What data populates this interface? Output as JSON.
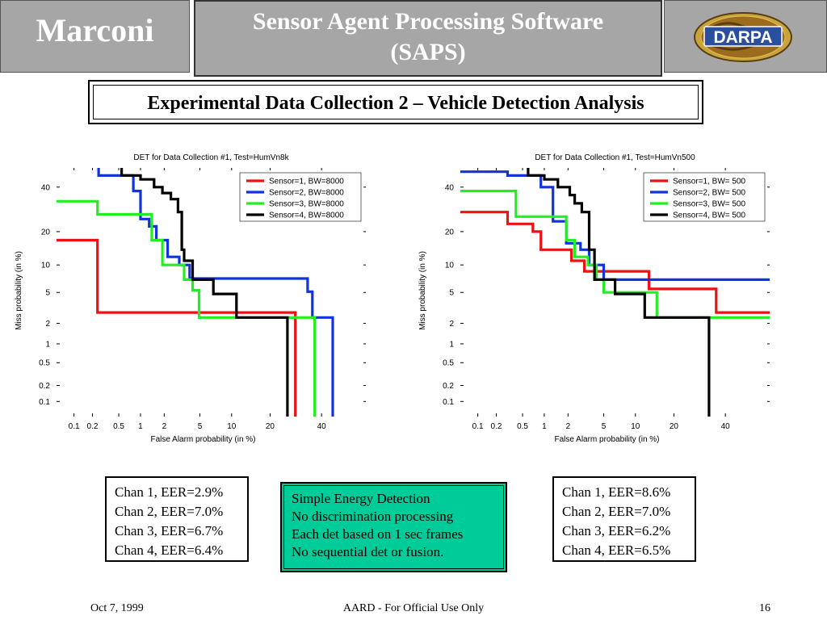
{
  "header": {
    "brand": "Marconi",
    "title_line1": "Sensor Agent Processing Software",
    "title_line2": "(SAPS)",
    "partner_logo": "DARPA",
    "bg_color": "#a6a6a6"
  },
  "subtitle": "Experimental Data Collection 2 – Vehicle Detection Analysis",
  "axis_ticks": [
    "0.1",
    "0.2",
    "0.5",
    "1",
    "2",
    "5",
    "10",
    "20",
    "40"
  ],
  "chart_data": [
    {
      "type": "line",
      "title": "DET for Data Collection #1, Test=HumVn8k",
      "xlabel": "False Alarm probability (in %)",
      "ylabel": "Miss probability (in %)",
      "xscale": "probit",
      "yscale": "probit",
      "xlim": [
        0.05,
        60
      ],
      "ylim": [
        0.05,
        50
      ],
      "grid": false,
      "legend_position": "top-right",
      "series": [
        {
          "name": "Sensor=1, BW=8000",
          "color": "#ee1111",
          "points": [
            [
              0.05,
              17
            ],
            [
              0.24,
              17
            ],
            [
              0.24,
              2.8
            ],
            [
              29,
              2.8
            ],
            [
              29,
              0.05
            ]
          ]
        },
        {
          "name": "Sensor=2, BW=8000",
          "color": "#1133dd",
          "points": [
            [
              0.25,
              50
            ],
            [
              0.25,
              46
            ],
            [
              0.8,
              46
            ],
            [
              0.8,
              38
            ],
            [
              1,
              38
            ],
            [
              1,
              25
            ],
            [
              1.3,
              25
            ],
            [
              1.3,
              22
            ],
            [
              1.6,
              22
            ],
            [
              1.6,
              17
            ],
            [
              2.2,
              17
            ],
            [
              2.2,
              12
            ],
            [
              3,
              12
            ],
            [
              3,
              10
            ],
            [
              3.9,
              10
            ],
            [
              3.9,
              7.2
            ],
            [
              34,
              7.2
            ],
            [
              34,
              5.1
            ],
            [
              36,
              5.1
            ],
            [
              36,
              2.4
            ],
            [
              45,
              2.4
            ],
            [
              45,
              0.05
            ]
          ]
        },
        {
          "name": "Sensor=3, BW=8000",
          "color": "#22ee22",
          "points": [
            [
              0.05,
              33
            ],
            [
              0.24,
              33
            ],
            [
              0.24,
              27
            ],
            [
              1.4,
              27
            ],
            [
              1.4,
              17
            ],
            [
              1.9,
              17
            ],
            [
              1.9,
              10
            ],
            [
              3.4,
              10
            ],
            [
              3.4,
              7
            ],
            [
              4.2,
              7
            ],
            [
              4.2,
              5.3
            ],
            [
              4.9,
              5.3
            ],
            [
              4.9,
              2.4
            ],
            [
              37,
              2.4
            ],
            [
              37,
              0.05
            ]
          ]
        },
        {
          "name": "Sensor=4, BW=8000",
          "color": "#000000",
          "points": [
            [
              0.55,
              50
            ],
            [
              0.55,
              46
            ],
            [
              1,
              46
            ],
            [
              1,
              44
            ],
            [
              1.5,
              44
            ],
            [
              1.5,
              40
            ],
            [
              1.9,
              40
            ],
            [
              1.9,
              37
            ],
            [
              2.4,
              37
            ],
            [
              2.4,
              34
            ],
            [
              2.9,
              34
            ],
            [
              2.9,
              28
            ],
            [
              3.2,
              28
            ],
            [
              3.2,
              14
            ],
            [
              3.4,
              14
            ],
            [
              3.4,
              11
            ],
            [
              4.2,
              11
            ],
            [
              4.2,
              7
            ],
            [
              6.8,
              7
            ],
            [
              6.8,
              4.8
            ],
            [
              11,
              4.8
            ],
            [
              11,
              2.4
            ],
            [
              26,
              2.4
            ],
            [
              26,
              0.05
            ]
          ]
        }
      ]
    },
    {
      "type": "line",
      "title": "DET for Data Collection #1, Test=HumVn500",
      "xlabel": "False Alarm probability (in %)",
      "ylabel": "Miss probability (in %)",
      "xscale": "probit",
      "yscale": "probit",
      "xlim": [
        0.05,
        60
      ],
      "ylim": [
        0.05,
        50
      ],
      "grid": false,
      "legend_position": "top-right",
      "series": [
        {
          "name": "Sensor=1, BW= 500",
          "color": "#ee1111",
          "points": [
            [
              0.05,
              28
            ],
            [
              0.3,
              28
            ],
            [
              0.3,
              23
            ],
            [
              0.7,
              23
            ],
            [
              0.7,
              20
            ],
            [
              0.9,
              20
            ],
            [
              0.9,
              14
            ],
            [
              2.2,
              14
            ],
            [
              2.2,
              11
            ],
            [
              3.1,
              11
            ],
            [
              3.1,
              8.6
            ],
            [
              13,
              8.6
            ],
            [
              13,
              5.5
            ],
            [
              36,
              5.5
            ],
            [
              36,
              2.8
            ],
            [
              60,
              2.8
            ]
          ]
        },
        {
          "name": "Sensor=2, BW= 500",
          "color": "#1133dd",
          "points": [
            [
              0.05,
              48
            ],
            [
              0.3,
              48
            ],
            [
              0.3,
              46
            ],
            [
              0.9,
              46
            ],
            [
              0.9,
              40
            ],
            [
              1.3,
              40
            ],
            [
              1.3,
              24
            ],
            [
              1.9,
              24
            ],
            [
              1.9,
              16
            ],
            [
              2.8,
              16
            ],
            [
              2.8,
              14
            ],
            [
              3.5,
              14
            ],
            [
              3.5,
              10
            ],
            [
              5,
              10
            ],
            [
              5,
              7
            ],
            [
              60,
              7
            ]
          ]
        },
        {
          "name": "Sensor=3, BW= 500",
          "color": "#22ee22",
          "points": [
            [
              0.05,
              38
            ],
            [
              0.4,
              38
            ],
            [
              0.4,
              26
            ],
            [
              1.9,
              26
            ],
            [
              1.9,
              17
            ],
            [
              2.4,
              17
            ],
            [
              2.4,
              12
            ],
            [
              3.4,
              12
            ],
            [
              3.4,
              10
            ],
            [
              4.2,
              10
            ],
            [
              4.2,
              7
            ],
            [
              5,
              7
            ],
            [
              5,
              5
            ],
            [
              15,
              5
            ],
            [
              15,
              2.4
            ],
            [
              60,
              2.4
            ]
          ]
        },
        {
          "name": "Sensor=4, BW= 500",
          "color": "#000000",
          "points": [
            [
              0.6,
              50
            ],
            [
              0.6,
              46
            ],
            [
              1,
              46
            ],
            [
              1,
              44
            ],
            [
              1.5,
              44
            ],
            [
              1.5,
              40
            ],
            [
              2.1,
              40
            ],
            [
              2.1,
              36
            ],
            [
              2.4,
              36
            ],
            [
              2.4,
              32
            ],
            [
              2.9,
              32
            ],
            [
              2.9,
              28
            ],
            [
              3.5,
              28
            ],
            [
              3.5,
              14
            ],
            [
              4,
              14
            ],
            [
              4,
              7
            ],
            [
              6.5,
              7
            ],
            [
              6.5,
              4.8
            ],
            [
              12,
              4.8
            ],
            [
              12,
              2.4
            ],
            [
              33,
              2.4
            ],
            [
              33,
              0.05
            ]
          ]
        }
      ]
    }
  ],
  "eer_left": [
    "Chan 1, EER=2.9%",
    "Chan 2, EER=7.0%",
    "Chan 3, EER=6.7%",
    "Chan 4, EER=6.4%"
  ],
  "eer_right": [
    "Chan 1, EER=8.6%",
    "Chan 2, EER=7.0%",
    "Chan 3, EER=6.2%",
    "Chan 4, EER=6.5%"
  ],
  "method_notes": [
    "Simple Energy Detection",
    "No discrimination processing",
    "Each det based on 1 sec frames",
    "No sequential det or fusion."
  ],
  "method_box_color": "#00cc99",
  "footer": {
    "date": "Oct 7, 1999",
    "classification": "AARD - For Official Use Only",
    "page": "16"
  }
}
